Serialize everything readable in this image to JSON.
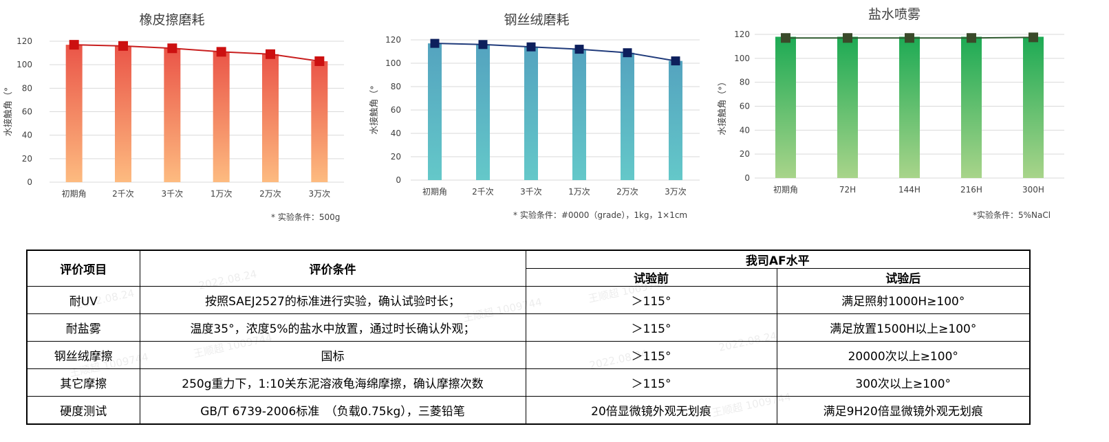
{
  "charts": [
    {
      "title": "橡皮擦磨耗",
      "ylabel": "水接触角（°",
      "condition": "* 实验条件：500g",
      "colors": {
        "bar_top": "#ea5548",
        "bar_bottom": "#fdbb80",
        "line": "#c81e1e",
        "marker": "#cc1010"
      }
    },
    {
      "title": "钢丝绒磨耗",
      "ylabel": "水接触角（°",
      "condition": "* 实验条件：#0000（grade），1kg，1×1cm",
      "colors": {
        "bar_top": "#54a3bf",
        "bar_bottom": "#64c8c9",
        "line": "#1f3a7a",
        "marker": "#0d1f5c"
      }
    },
    {
      "title": "盐水喷雾",
      "ylabel": "水接触角（°）",
      "condition": "*实验条件：5%NaCl",
      "colors": {
        "bar_top": "#1daa54",
        "bar_bottom": "#a8d48a",
        "line": "#2f5a2f",
        "marker": "#3a4a2a"
      }
    }
  ],
  "chart_data": [
    {
      "type": "bar",
      "title": "橡皮擦磨耗",
      "ylabel": "水接触角（°",
      "categories": [
        "初期角",
        "2千次",
        "3千次",
        "1万次",
        "2万次",
        "3万次"
      ],
      "values": [
        117,
        116,
        114,
        111,
        109,
        103
      ],
      "line_values": [
        117,
        116,
        114,
        111,
        109,
        103
      ],
      "ylim": [
        0,
        120
      ],
      "yticks": [
        0,
        20,
        40,
        60,
        80,
        100,
        120
      ],
      "grid": true
    },
    {
      "type": "bar",
      "title": "钢丝绒磨耗",
      "ylabel": "水接触角（°",
      "categories": [
        "初期角",
        "2千次",
        "3千次",
        "1万次",
        "2万次",
        "3万次"
      ],
      "values": [
        117,
        116,
        114,
        112,
        109,
        102
      ],
      "line_values": [
        117,
        116,
        114,
        112,
        109,
        102
      ],
      "ylim": [
        0,
        120
      ],
      "yticks": [
        0,
        20,
        40,
        60,
        80,
        100,
        120
      ],
      "grid": true
    },
    {
      "type": "bar",
      "title": "盐水喷雾",
      "ylabel": "水接触角（°）",
      "categories": [
        "初期角",
        "72H",
        "144H",
        "216H",
        "300H"
      ],
      "values": [
        118,
        118,
        118,
        118,
        118
      ],
      "line_values": [
        117,
        117,
        117,
        117,
        117.5
      ],
      "ylim": [
        0,
        120
      ],
      "yticks": [
        0,
        20,
        40,
        60,
        80,
        100,
        120
      ],
      "grid": true
    }
  ],
  "table": {
    "headers": {
      "item": "评价项目",
      "condition": "评价条件",
      "level": "我司AF水平",
      "before": "试验前",
      "after": "试验后"
    },
    "rows": [
      {
        "item": "耐UV",
        "condition": "按照SAEJ2527的标准进行实验，确认试验时长；",
        "before": "＞115°",
        "after": "满足照射1000H≥100°"
      },
      {
        "item": "耐盐雾",
        "condition": "温度35°，浓度5%的盐水中放置，通过时长确认外观；",
        "before": "＞115°",
        "after": "满足放置1500H以上≥100°"
      },
      {
        "item": "钢丝绒摩擦",
        "condition": "国标",
        "before": "＞115°",
        "after": "20000次以上≥100°"
      },
      {
        "item": "其它摩擦",
        "condition": "250g重力下，1:10关东泥溶液龟海绵摩擦，确认摩擦次数",
        "before": "＞115°",
        "after": "300次以上≥100°"
      },
      {
        "item": "硬度测试",
        "condition": "GB/T 6739-2006标准　（负载0.75kg），三菱铅笔",
        "before": "20倍显微镜外观无划痕",
        "after": "满足9H20倍显微镜外观无划痕"
      }
    ]
  },
  "watermarks": [
    "2022.08.24",
    "王顺超 1009744"
  ]
}
